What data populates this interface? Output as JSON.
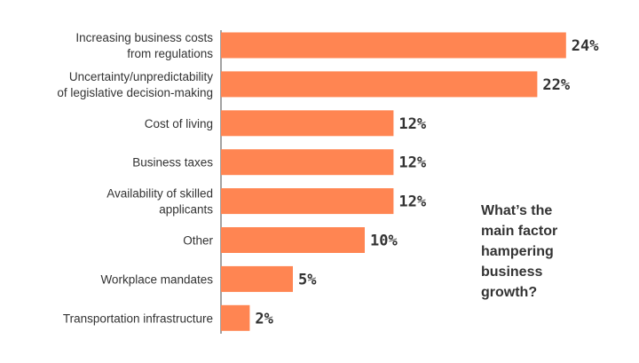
{
  "question_lines": [
    "What’s the",
    "main factor",
    "hampering",
    "business",
    "growth?"
  ],
  "colors": {
    "bar": "#ff8552",
    "axis": "#666666",
    "text": "#333333"
  },
  "chart_data": {
    "type": "bar",
    "orientation": "horizontal",
    "categories": [
      [
        "Increasing business costs",
        "from regulations"
      ],
      [
        "Uncertainty/unpredictability",
        "of legislative decision-making"
      ],
      [
        "Cost of living"
      ],
      [
        "Business taxes"
      ],
      [
        "Availability of skilled",
        "applicants"
      ],
      [
        "Other"
      ],
      [
        "Workplace mandates"
      ],
      [
        "Transportation infrastructure"
      ]
    ],
    "values": [
      24,
      22,
      12,
      12,
      12,
      10,
      5,
      2
    ],
    "value_labels": [
      "24%",
      "22%",
      "12%",
      "12%",
      "12%",
      "10%",
      "5%",
      "2%"
    ],
    "unit": "%",
    "xlim": [
      0,
      24
    ],
    "grid": false,
    "legend": "none"
  }
}
